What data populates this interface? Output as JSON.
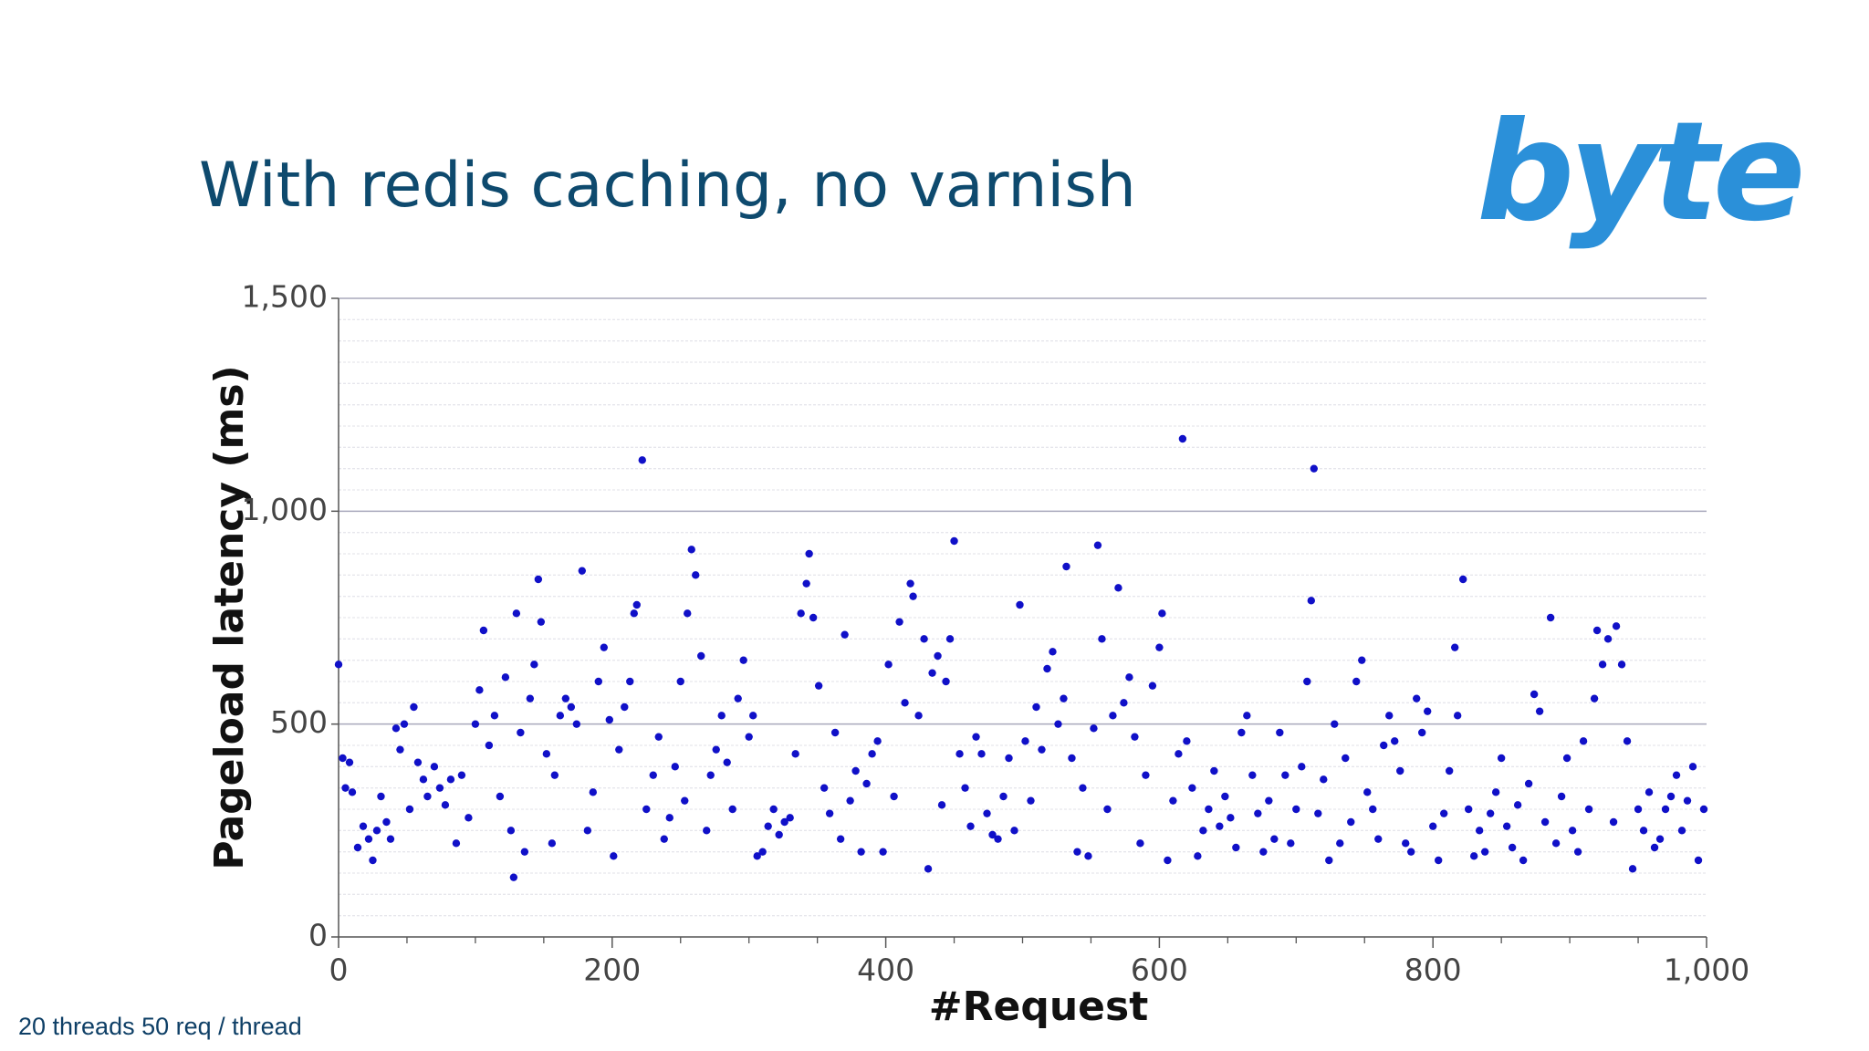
{
  "logo": "byte",
  "footnote": "20 threads 50 req / thread",
  "chart_data": {
    "type": "scatter",
    "title": "With redis caching, no varnish",
    "x_label": "#Request",
    "y_label": "Pageload latency (ms)",
    "color": "#1010c8",
    "xlim": [
      0,
      1000
    ],
    "ylim": [
      0,
      1500
    ],
    "xticks": [
      0,
      200,
      400,
      600,
      800,
      {
        "value": 1000,
        "label": "1,000"
      }
    ],
    "yticks": [
      0,
      500,
      {
        "value": 1000,
        "label": "1,000"
      },
      {
        "value": 1500,
        "label": "1,500"
      }
    ],
    "xminorticks": [
      50,
      100,
      150,
      250,
      300,
      350,
      450,
      500,
      550,
      650,
      700,
      750,
      850,
      900,
      950
    ],
    "yminorticks": [
      50,
      100,
      150,
      200,
      250,
      300,
      350,
      400,
      450,
      550,
      600,
      650,
      700,
      750,
      800,
      850,
      900,
      950,
      1050,
      1100,
      1150,
      1200,
      1250,
      1300,
      1350,
      1400,
      1450
    ],
    "grid": true,
    "x": [
      0,
      3,
      5,
      8,
      10,
      14,
      18,
      22,
      25,
      28,
      31,
      35,
      38,
      42,
      45,
      48,
      52,
      55,
      58,
      62,
      65,
      70,
      74,
      78,
      82,
      86,
      90,
      95,
      100,
      103,
      106,
      110,
      114,
      118,
      122,
      126,
      128,
      130,
      133,
      136,
      140,
      143,
      146,
      148,
      152,
      156,
      158,
      162,
      166,
      170,
      174,
      178,
      182,
      186,
      190,
      194,
      198,
      201,
      205,
      209,
      213,
      216,
      218,
      222,
      225,
      230,
      234,
      238,
      242,
      246,
      250,
      253,
      255,
      258,
      261,
      265,
      269,
      272,
      276,
      280,
      284,
      288,
      292,
      296,
      300,
      303,
      306,
      310,
      314,
      318,
      322,
      326,
      330,
      334,
      338,
      342,
      344,
      347,
      351,
      355,
      359,
      363,
      367,
      370,
      374,
      378,
      382,
      386,
      390,
      394,
      398,
      402,
      406,
      410,
      414,
      418,
      420,
      424,
      428,
      431,
      434,
      438,
      441,
      444,
      447,
      450,
      454,
      458,
      462,
      466,
      470,
      474,
      478,
      482,
      486,
      490,
      494,
      498,
      502,
      506,
      510,
      514,
      518,
      522,
      526,
      530,
      532,
      536,
      540,
      544,
      548,
      552,
      555,
      558,
      562,
      566,
      570,
      574,
      578,
      582,
      586,
      590,
      595,
      600,
      602,
      606,
      610,
      614,
      617,
      620,
      624,
      628,
      632,
      636,
      640,
      644,
      648,
      652,
      656,
      660,
      664,
      668,
      672,
      676,
      680,
      684,
      688,
      692,
      696,
      700,
      704,
      708,
      711,
      713,
      716,
      720,
      724,
      728,
      732,
      736,
      740,
      744,
      748,
      752,
      756,
      760,
      764,
      768,
      772,
      776,
      780,
      784,
      788,
      792,
      796,
      800,
      804,
      808,
      812,
      816,
      818,
      822,
      826,
      830,
      834,
      838,
      842,
      846,
      850,
      854,
      858,
      862,
      866,
      870,
      874,
      878,
      882,
      886,
      890,
      894,
      898,
      902,
      906,
      910,
      914,
      918,
      920,
      924,
      928,
      932,
      934,
      938,
      942,
      946,
      950,
      954,
      958,
      962,
      966,
      970,
      974,
      978,
      982,
      986,
      990,
      994,
      998
    ],
    "values": [
      640,
      420,
      350,
      410,
      340,
      210,
      260,
      230,
      180,
      250,
      330,
      270,
      230,
      490,
      440,
      500,
      300,
      540,
      410,
      370,
      330,
      400,
      350,
      310,
      370,
      220,
      380,
      280,
      500,
      580,
      720,
      450,
      520,
      330,
      610,
      250,
      140,
      760,
      480,
      200,
      560,
      640,
      840,
      740,
      430,
      220,
      380,
      520,
      560,
      540,
      500,
      860,
      250,
      340,
      600,
      680,
      510,
      190,
      440,
      540,
      600,
      760,
      780,
      1120,
      300,
      380,
      470,
      230,
      280,
      400,
      600,
      320,
      760,
      910,
      850,
      660,
      250,
      380,
      440,
      520,
      410,
      300,
      560,
      650,
      470,
      520,
      190,
      200,
      260,
      300,
      240,
      270,
      280,
      430,
      760,
      830,
      900,
      750,
      590,
      350,
      290,
      480,
      230,
      710,
      320,
      390,
      200,
      360,
      430,
      460,
      200,
      640,
      330,
      740,
      550,
      830,
      800,
      520,
      700,
      160,
      620,
      660,
      310,
      600,
      700,
      930,
      430,
      350,
      260,
      470,
      430,
      290,
      240,
      230,
      330,
      420,
      250,
      780,
      460,
      320,
      540,
      440,
      630,
      670,
      500,
      560,
      870,
      420,
      200,
      350,
      190,
      490,
      920,
      700,
      300,
      520,
      820,
      550,
      610,
      470,
      220,
      380,
      590,
      680,
      760,
      180,
      320,
      430,
      1170,
      460,
      350,
      190,
      250,
      300,
      390,
      260,
      330,
      280,
      210,
      480,
      520,
      380,
      290,
      200,
      320,
      230,
      480,
      380,
      220,
      300,
      400,
      600,
      790,
      1100,
      290,
      370,
      180,
      500,
      220,
      420,
      270,
      600,
      650,
      340,
      300,
      230,
      450,
      520,
      460,
      390,
      220,
      200,
      560,
      480,
      530,
      260,
      180,
      290,
      390,
      680,
      520,
      840,
      300,
      190,
      250,
      200,
      290,
      340,
      420,
      260,
      210,
      310,
      180,
      360,
      570,
      530,
      270,
      750,
      220,
      330,
      420,
      250,
      200,
      460,
      300,
      560,
      720,
      640,
      700,
      270,
      730,
      640,
      460,
      160,
      300,
      250,
      340,
      210,
      230,
      300,
      330,
      380,
      250,
      320,
      400,
      180,
      300
    ]
  }
}
